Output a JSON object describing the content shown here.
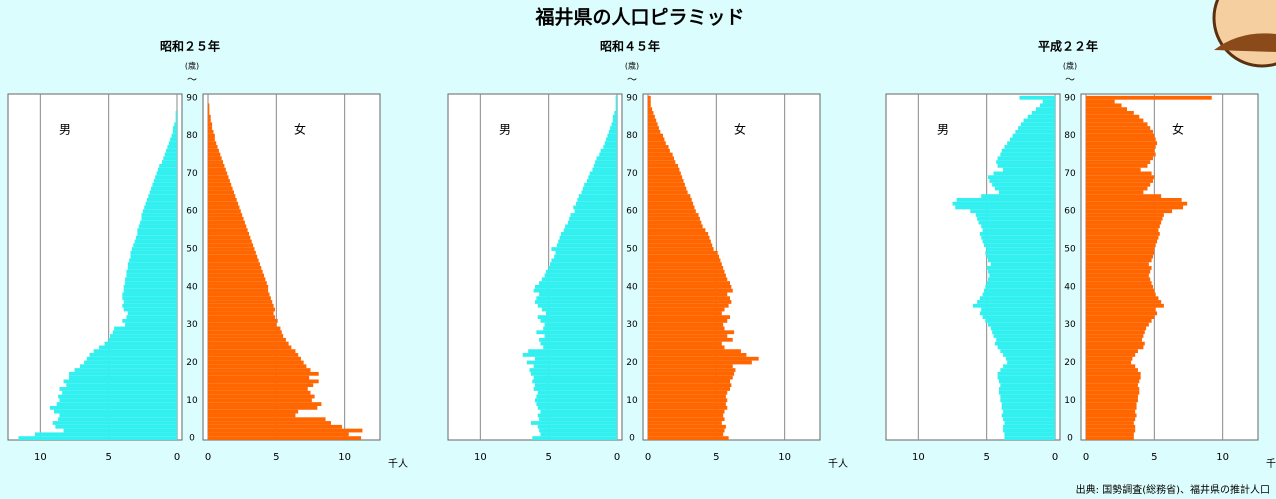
{
  "title": "福井県の人口ピラミッド",
  "source": "出典: 国勢調査(総務省)、福井県の推計人口",
  "chart_data": [
    {
      "type": "pyramid",
      "title": "昭和２５年",
      "y_label": "(歳)",
      "y_label_note": "～",
      "x_unit": "千人",
      "categories": [
        0,
        1,
        2,
        3,
        4,
        5,
        6,
        7,
        8,
        9,
        10,
        11,
        12,
        13,
        14,
        15,
        16,
        17,
        18,
        19,
        20,
        21,
        22,
        23,
        24,
        25,
        26,
        27,
        28,
        29,
        30,
        31,
        32,
        33,
        34,
        35,
        36,
        37,
        38,
        39,
        40,
        41,
        42,
        43,
        44,
        45,
        46,
        47,
        48,
        49,
        50,
        51,
        52,
        53,
        54,
        55,
        56,
        57,
        58,
        59,
        60,
        61,
        62,
        63,
        64,
        65,
        66,
        67,
        68,
        69,
        70,
        71,
        72,
        73,
        74,
        75,
        76,
        77,
        78,
        79,
        80,
        81,
        82,
        83,
        84,
        85,
        86,
        87,
        88,
        89,
        90
      ],
      "ylim": [
        -0.5,
        91
      ],
      "yticks": [
        0,
        10,
        20,
        30,
        40,
        50,
        60,
        70,
        80,
        90
      ],
      "xlim": [
        0,
        12
      ],
      "xticks": [
        0,
        5,
        10
      ],
      "grid": true,
      "series": [
        {
          "name": "男",
          "color": "#33f0f0",
          "values": [
            11.6,
            10.4,
            8.3,
            8.9,
            9.1,
            8.7,
            8.6,
            9.0,
            9.3,
            8.8,
            8.6,
            8.7,
            8.4,
            8.6,
            8.1,
            8.3,
            7.9,
            7.9,
            7.5,
            7.1,
            6.8,
            6.6,
            6.4,
            6.1,
            5.7,
            5.3,
            5.0,
            4.9,
            4.7,
            4.6,
            3.8,
            4.0,
            3.7,
            3.6,
            3.9,
            4.0,
            3.9,
            4.0,
            4.0,
            3.9,
            3.9,
            3.8,
            3.8,
            3.7,
            3.7,
            3.6,
            3.6,
            3.5,
            3.4,
            3.4,
            3.3,
            3.2,
            3.1,
            3.0,
            2.9,
            2.9,
            2.8,
            2.7,
            2.6,
            2.6,
            2.5,
            2.4,
            2.3,
            2.2,
            2.1,
            2.0,
            1.9,
            1.8,
            1.7,
            1.6,
            1.5,
            1.4,
            1.3,
            1.1,
            1.0,
            0.9,
            0.8,
            0.7,
            0.6,
            0.5,
            0.4,
            0.3,
            0.3,
            0.2,
            0.1,
            0.1,
            0.1,
            0,
            0,
            0,
            0
          ]
        },
        {
          "name": "女",
          "color": "#ff6600",
          "values": [
            11.2,
            10.3,
            11.3,
            9.8,
            9.0,
            8.6,
            6.4,
            6.6,
            8.0,
            8.3,
            7.6,
            7.8,
            7.5,
            7.3,
            7.7,
            8.1,
            7.4,
            8.1,
            7.5,
            7.2,
            7.0,
            6.8,
            6.6,
            6.4,
            6.1,
            5.9,
            5.7,
            5.5,
            5.4,
            5.3,
            5.0,
            5.1,
            4.9,
            4.8,
            4.9,
            4.8,
            4.7,
            4.6,
            4.5,
            4.4,
            4.4,
            4.3,
            4.2,
            4.1,
            4.0,
            3.9,
            3.8,
            3.7,
            3.6,
            3.5,
            3.4,
            3.3,
            3.2,
            3.1,
            3.0,
            2.9,
            2.8,
            2.7,
            2.6,
            2.5,
            2.4,
            2.3,
            2.2,
            2.1,
            2.0,
            1.9,
            1.8,
            1.7,
            1.6,
            1.5,
            1.4,
            1.3,
            1.2,
            1.1,
            1.0,
            0.9,
            0.8,
            0.7,
            0.6,
            0.5,
            0.5,
            0.4,
            0.3,
            0.3,
            0.2,
            0.2,
            0.1,
            0.1,
            0.1,
            0,
            0
          ]
        }
      ]
    },
    {
      "type": "pyramid",
      "title": "昭和４５年",
      "y_label": "(歳)",
      "y_label_note": "～",
      "x_unit": "千人",
      "categories": [
        0,
        1,
        2,
        3,
        4,
        5,
        6,
        7,
        8,
        9,
        10,
        11,
        12,
        13,
        14,
        15,
        16,
        17,
        18,
        19,
        20,
        21,
        22,
        23,
        24,
        25,
        26,
        27,
        28,
        29,
        30,
        31,
        32,
        33,
        34,
        35,
        36,
        37,
        38,
        39,
        40,
        41,
        42,
        43,
        44,
        45,
        46,
        47,
        48,
        49,
        50,
        51,
        52,
        53,
        54,
        55,
        56,
        57,
        58,
        59,
        60,
        61,
        62,
        63,
        64,
        65,
        66,
        67,
        68,
        69,
        70,
        71,
        72,
        73,
        74,
        75,
        76,
        77,
        78,
        79,
        80,
        81,
        82,
        83,
        84,
        85,
        86,
        87,
        88,
        89,
        90
      ],
      "ylim": [
        -0.5,
        91
      ],
      "yticks": [
        0,
        10,
        20,
        30,
        40,
        50,
        60,
        70,
        80,
        90
      ],
      "xlim": [
        0,
        12
      ],
      "xticks": [
        0,
        5,
        10
      ],
      "grid": true,
      "series": [
        {
          "name": "男",
          "color": "#33f0f0",
          "values": [
            6.2,
            5.6,
            5.7,
            5.8,
            6.3,
            5.7,
            5.8,
            5.6,
            5.8,
            5.9,
            6.0,
            5.9,
            5.8,
            6.1,
            6.0,
            6.2,
            6.1,
            6.3,
            6.4,
            6.1,
            6.6,
            6.0,
            6.9,
            6.5,
            5.4,
            5.6,
            5.7,
            5.3,
            5.9,
            5.4,
            5.3,
            5.6,
            5.8,
            5.2,
            5.5,
            5.8,
            6.0,
            5.9,
            5.7,
            6.1,
            6.0,
            5.7,
            5.5,
            5.3,
            5.2,
            5.0,
            4.9,
            4.8,
            4.6,
            4.5,
            4.8,
            4.4,
            4.3,
            4.2,
            4.1,
            3.9,
            3.8,
            3.6,
            3.5,
            3.4,
            3.1,
            3.2,
            3.0,
            2.9,
            2.8,
            2.6,
            2.5,
            2.4,
            2.2,
            2.1,
            2.0,
            1.8,
            1.7,
            1.6,
            1.5,
            1.3,
            1.2,
            1.0,
            0.9,
            0.8,
            0.7,
            0.6,
            0.5,
            0.4,
            0.3,
            0.3,
            0.2,
            0.1,
            0.1,
            0.1,
            0.1
          ]
        },
        {
          "name": "女",
          "color": "#ff6600",
          "values": [
            5.9,
            5.5,
            5.6,
            5.7,
            5.4,
            5.6,
            5.5,
            5.6,
            5.8,
            5.7,
            5.8,
            5.7,
            5.8,
            6.0,
            6.1,
            6.0,
            6.2,
            6.3,
            6.4,
            6.2,
            7.6,
            8.1,
            7.2,
            6.8,
            5.6,
            5.4,
            6.2,
            5.8,
            6.3,
            5.6,
            5.5,
            5.8,
            6.0,
            5.4,
            5.6,
            5.9,
            6.1,
            6.0,
            5.8,
            6.2,
            6.1,
            6.0,
            5.8,
            5.7,
            5.6,
            5.5,
            5.4,
            5.3,
            5.2,
            5.1,
            4.8,
            4.7,
            4.6,
            4.5,
            4.4,
            4.2,
            4.0,
            3.9,
            3.8,
            3.7,
            3.5,
            3.4,
            3.3,
            3.2,
            3.1,
            2.9,
            2.8,
            2.7,
            2.6,
            2.5,
            2.4,
            2.3,
            2.2,
            2.0,
            1.9,
            1.8,
            1.6,
            1.5,
            1.3,
            1.2,
            1.1,
            0.9,
            0.8,
            0.7,
            0.6,
            0.5,
            0.4,
            0.3,
            0.2,
            0.2,
            0.2
          ]
        }
      ]
    },
    {
      "type": "pyramid",
      "title": "平成２２年",
      "y_label": "(歳)",
      "y_label_note": "～",
      "x_unit": "千人",
      "categories": [
        0,
        1,
        2,
        3,
        4,
        5,
        6,
        7,
        8,
        9,
        10,
        11,
        12,
        13,
        14,
        15,
        16,
        17,
        18,
        19,
        20,
        21,
        22,
        23,
        24,
        25,
        26,
        27,
        28,
        29,
        30,
        31,
        32,
        33,
        34,
        35,
        36,
        37,
        38,
        39,
        40,
        41,
        42,
        43,
        44,
        45,
        46,
        47,
        48,
        49,
        50,
        51,
        52,
        53,
        54,
        55,
        56,
        57,
        58,
        59,
        60,
        61,
        62,
        63,
        64,
        65,
        66,
        67,
        68,
        69,
        70,
        71,
        72,
        73,
        74,
        75,
        76,
        77,
        78,
        79,
        80,
        81,
        82,
        83,
        84,
        85,
        86,
        87,
        88,
        89,
        90
      ],
      "ylim": [
        -0.5,
        91
      ],
      "yticks": [
        0,
        10,
        20,
        30,
        40,
        50,
        60,
        70,
        80,
        90
      ],
      "xlim": [
        0,
        12
      ],
      "xticks": [
        0,
        5,
        10
      ],
      "grid": true,
      "series": [
        {
          "name": "男",
          "color": "#33f0f0",
          "values": [
            3.7,
            3.7,
            3.8,
            3.8,
            3.7,
            3.8,
            3.9,
            3.8,
            3.9,
            3.9,
            4.0,
            4.0,
            4.1,
            4.1,
            4.0,
            4.1,
            4.2,
            4.2,
            4.0,
            3.8,
            3.5,
            3.6,
            3.8,
            4.0,
            4.2,
            4.4,
            4.3,
            4.5,
            4.6,
            4.7,
            4.9,
            5.1,
            5.3,
            5.5,
            5.4,
            6.0,
            5.7,
            5.5,
            5.3,
            5.2,
            5.1,
            5.0,
            4.9,
            4.8,
            4.9,
            5.0,
            4.7,
            4.9,
            5.0,
            5.1,
            5.0,
            5.2,
            5.3,
            5.4,
            5.5,
            5.3,
            5.4,
            5.6,
            5.7,
            5.8,
            6.2,
            7.3,
            7.5,
            7.2,
            5.4,
            4.1,
            4.4,
            4.6,
            4.8,
            4.9,
            4.5,
            3.8,
            4.2,
            4.3,
            4.2,
            4.0,
            3.9,
            3.7,
            3.5,
            3.3,
            3.1,
            2.9,
            2.7,
            2.5,
            2.3,
            2.0,
            1.7,
            1.4,
            1.1,
            0.9,
            2.6
          ]
        },
        {
          "name": "女",
          "color": "#ff6600",
          "values": [
            3.5,
            3.5,
            3.6,
            3.6,
            3.5,
            3.6,
            3.7,
            3.6,
            3.7,
            3.7,
            3.8,
            3.8,
            3.9,
            3.9,
            3.8,
            3.9,
            4.0,
            4.0,
            3.8,
            3.6,
            3.3,
            3.4,
            3.6,
            3.8,
            4.2,
            4.3,
            4.1,
            4.2,
            4.3,
            4.4,
            4.6,
            4.8,
            5.0,
            5.2,
            5.1,
            5.7,
            5.5,
            5.3,
            5.1,
            5.0,
            4.9,
            4.8,
            4.7,
            4.6,
            4.7,
            4.8,
            4.6,
            4.8,
            4.9,
            5.0,
            5.0,
            5.1,
            5.2,
            5.3,
            5.4,
            5.3,
            5.4,
            5.5,
            5.6,
            5.7,
            6.3,
            7.1,
            7.4,
            7.0,
            5.5,
            4.2,
            4.5,
            4.7,
            4.9,
            5.0,
            4.8,
            4.0,
            4.5,
            4.7,
            4.9,
            5.1,
            5.0,
            5.1,
            5.2,
            5.1,
            5.0,
            4.9,
            4.7,
            4.5,
            4.2,
            3.9,
            3.5,
            3.0,
            2.6,
            2.1,
            9.2
          ]
        }
      ]
    }
  ]
}
